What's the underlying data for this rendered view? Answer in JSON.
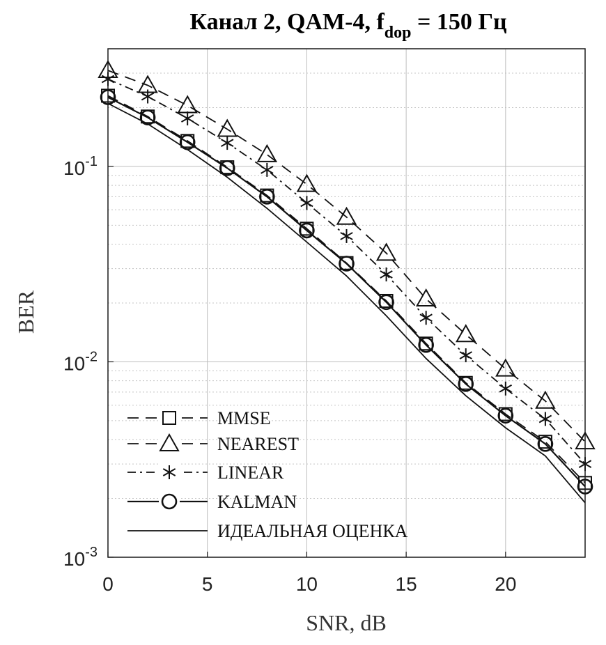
{
  "chart_data": {
    "type": "line",
    "title_main": "Канал 2, QAM-4, f",
    "title_sub": "dop",
    "title_tail": " = 150 Гц",
    "xlabel": "SNR, dB",
    "ylabel": "BER",
    "xlim": [
      0,
      24
    ],
    "ylim": [
      0.001,
      0.4
    ],
    "yscale": "log",
    "grid": true,
    "legend_position": "bottom-left",
    "x_ticks": [
      "0",
      "5",
      "10",
      "15",
      "20"
    ],
    "y_ticks": [
      {
        "base": "10",
        "exp": "-3"
      },
      {
        "base": "10",
        "exp": "-2"
      },
      {
        "base": "10",
        "exp": "-1"
      }
    ],
    "x": [
      0,
      2,
      4,
      6,
      8,
      10,
      12,
      14,
      16,
      18,
      20,
      22,
      24
    ],
    "series": [
      {
        "name": "MMSE",
        "marker": "square",
        "dash": "long-dash",
        "values": [
          0.23,
          0.18,
          0.135,
          0.099,
          0.071,
          0.048,
          0.032,
          0.0205,
          0.0124,
          0.0078,
          0.0054,
          0.0039,
          0.0024
        ]
      },
      {
        "name": "NEAREST",
        "marker": "triangle",
        "dash": "long-dash",
        "values": [
          0.31,
          0.26,
          0.205,
          0.155,
          0.115,
          0.081,
          0.055,
          0.036,
          0.021,
          0.0138,
          0.0092,
          0.0063,
          0.0039
        ]
      },
      {
        "name": "LINEAR",
        "marker": "asterisk",
        "dash": "dash-dot",
        "values": [
          0.28,
          0.228,
          0.176,
          0.132,
          0.096,
          0.065,
          0.044,
          0.028,
          0.0168,
          0.0108,
          0.0073,
          0.0051,
          0.003
        ]
      },
      {
        "name": "KALMAN",
        "marker": "circle",
        "dash": "solid",
        "values": [
          0.226,
          0.178,
          0.133,
          0.098,
          0.07,
          0.047,
          0.0318,
          0.0202,
          0.0122,
          0.0077,
          0.0053,
          0.0038,
          0.0023
        ]
      },
      {
        "name": "ИДЕАЛЬНАЯ ОЦЕНКА",
        "marker": "none",
        "dash": "solid",
        "values": [
          0.21,
          0.165,
          0.122,
          0.088,
          0.061,
          0.041,
          0.0275,
          0.0172,
          0.0104,
          0.0067,
          0.0046,
          0.0033,
          0.0019
        ]
      }
    ]
  }
}
